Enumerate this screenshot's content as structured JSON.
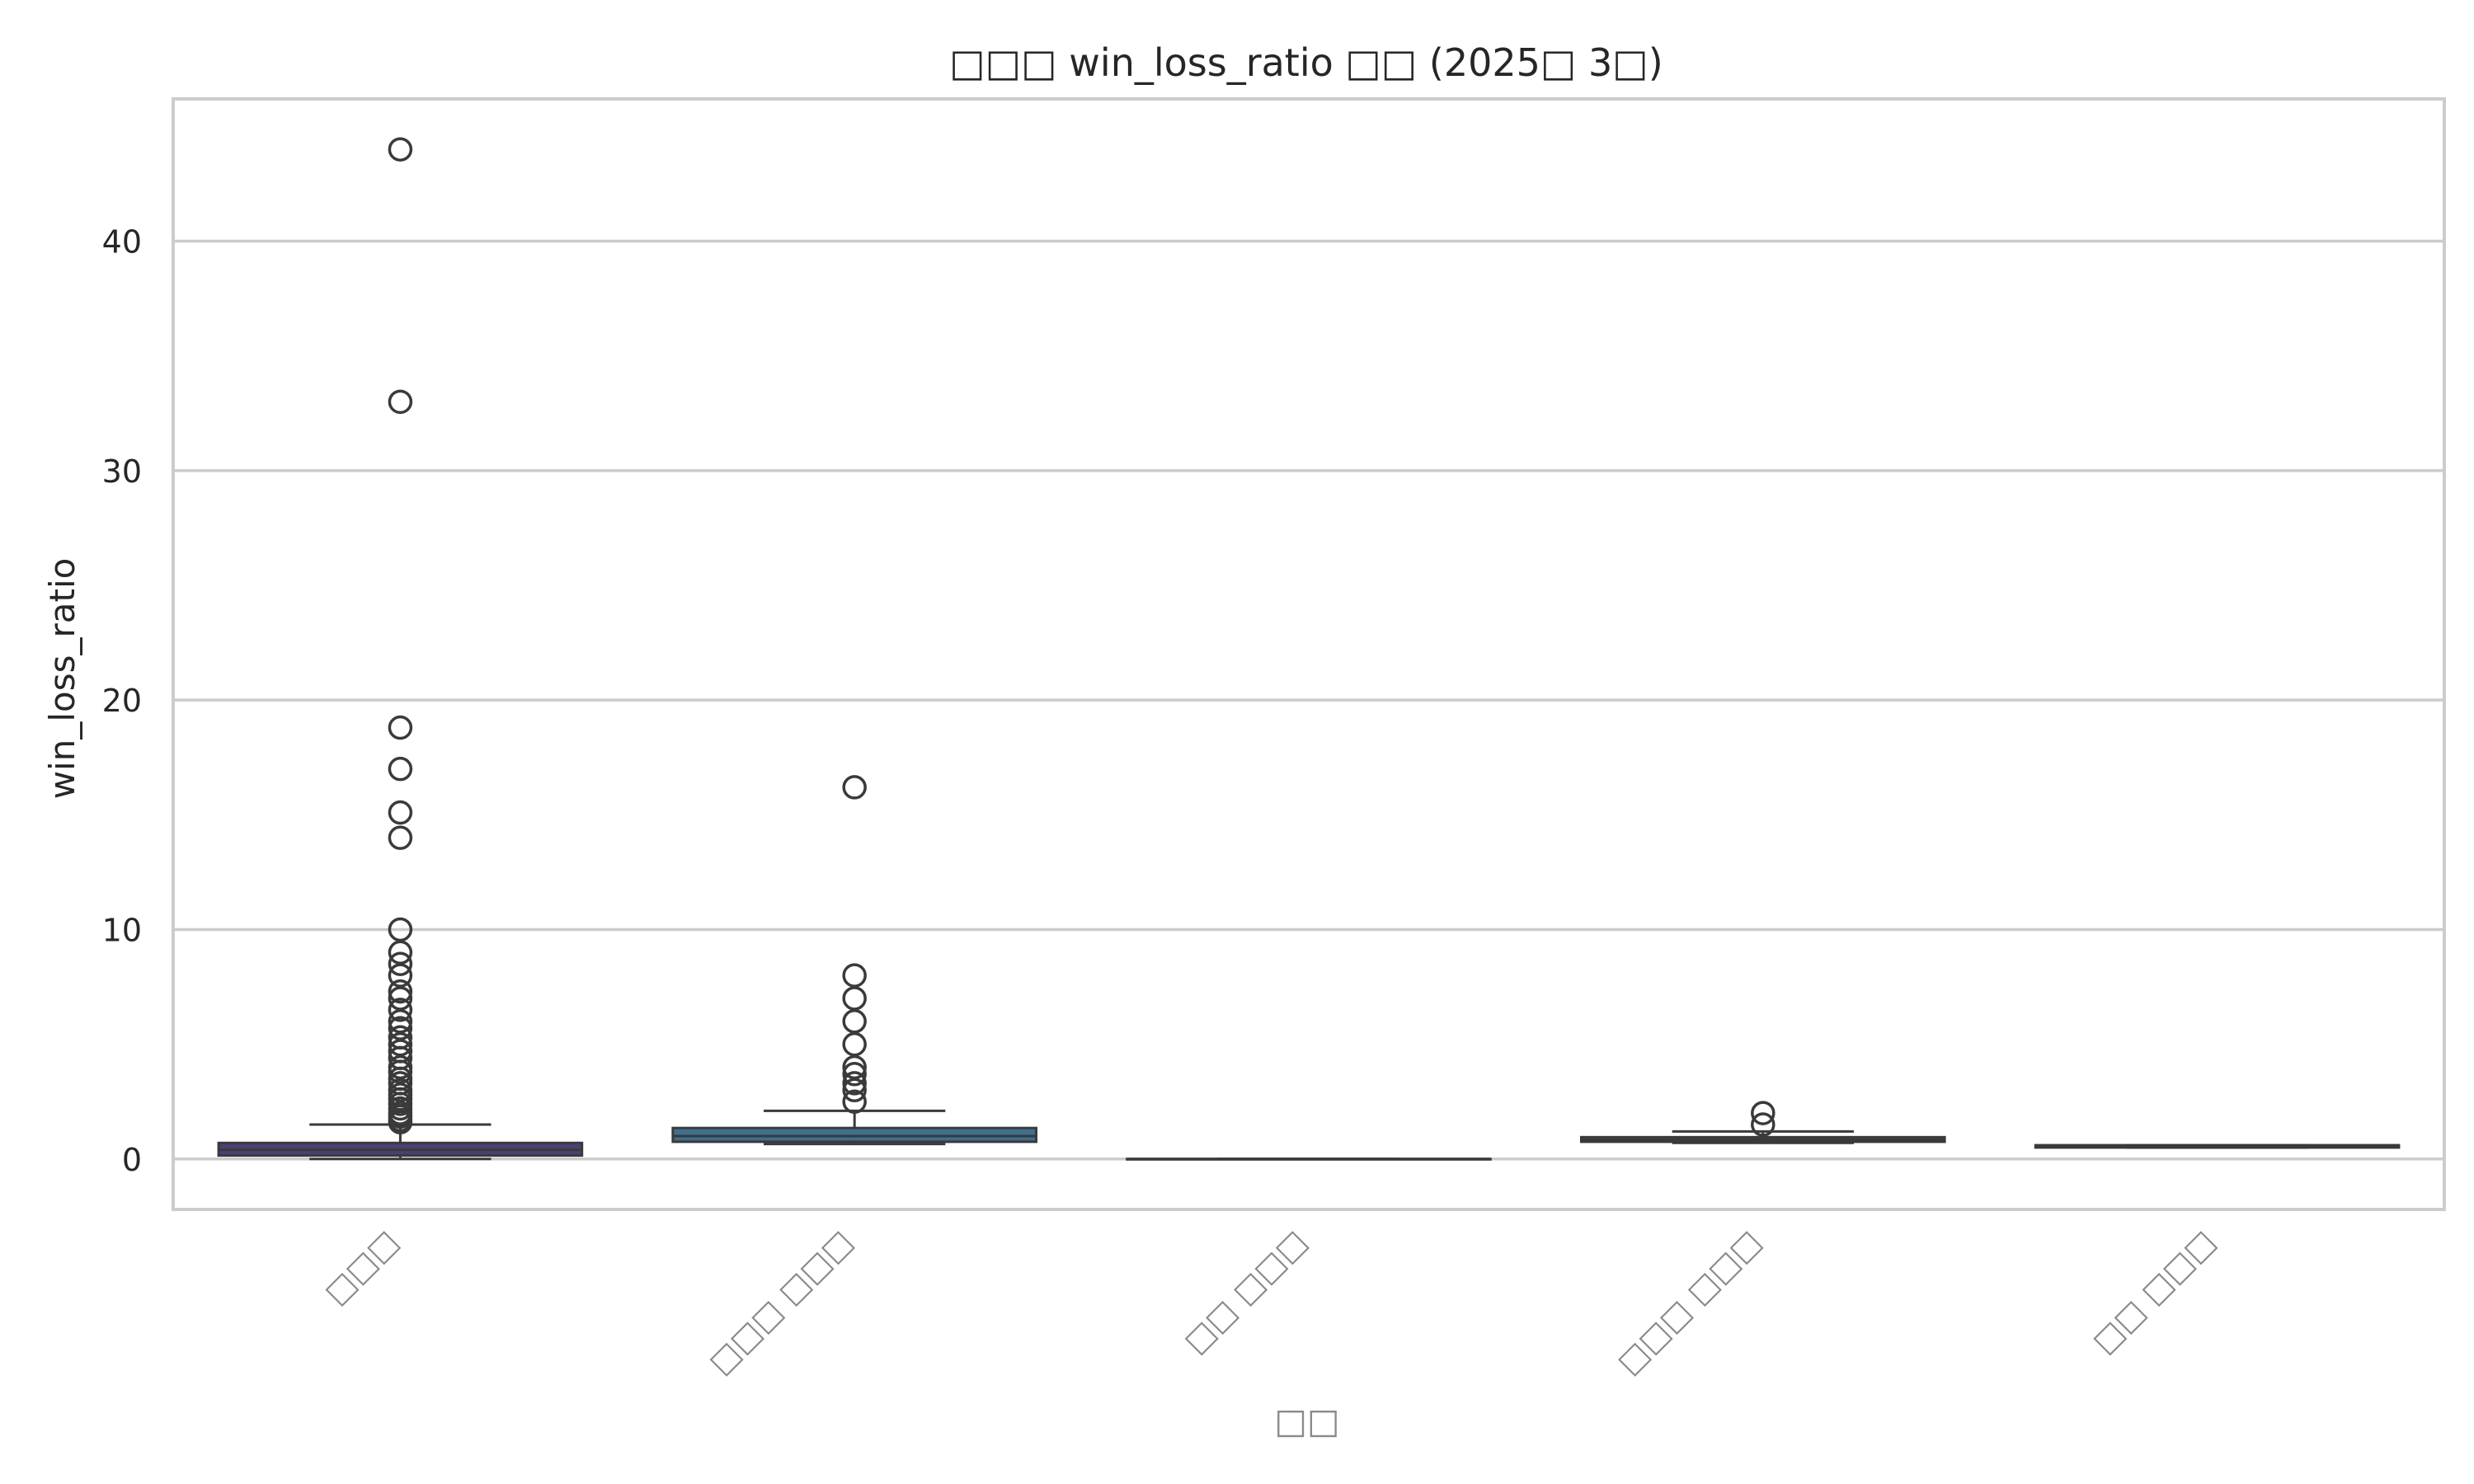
{
  "chart_data": {
    "type": "box",
    "title": "□□□ win_loss_ratio □□ (2025□ 3□)",
    "xlabel": "□□",
    "ylabel": "win_loss_ratio",
    "ylim": [
      -2.2,
      46.2
    ],
    "yticks": [
      0,
      10,
      20,
      30,
      40
    ],
    "grid": true,
    "categories": [
      "□□□",
      "□□□ □□□",
      "□□ □□□",
      "□□□ □□□",
      "□□ □□□"
    ],
    "series": [
      {
        "category": "□□□",
        "color": "#4c3f76",
        "min": 0.0,
        "q1": 0.15,
        "median": 0.4,
        "q3": 0.7,
        "max": 1.5,
        "outliers": [
          44.0,
          33.0,
          18.8,
          17.0,
          15.1,
          14.0,
          10.0,
          9.0,
          8.5,
          8.0,
          7.3,
          7.0,
          6.5,
          6.0,
          5.7,
          5.3,
          5.0,
          4.7,
          4.4,
          4.0,
          3.8,
          3.5,
          3.3,
          3.0,
          2.8,
          2.6,
          2.4,
          2.2,
          2.0,
          1.85,
          1.7,
          1.6
        ]
      },
      {
        "category": "□□□ □□□",
        "color": "#3e6f8f",
        "min": 0.65,
        "q1": 0.75,
        "median": 1.0,
        "q3": 1.35,
        "max": 2.1,
        "outliers": [
          16.2,
          8.0,
          7.0,
          6.0,
          5.0,
          4.0,
          3.7,
          3.3,
          3.0,
          2.5
        ]
      },
      {
        "category": "□□ □□□",
        "color": "#2f8b8a",
        "min": 0.0,
        "q1": 0.0,
        "median": 0.0,
        "q3": 0.0,
        "max": 0.0,
        "outliers": []
      },
      {
        "category": "□□□ □□□",
        "color": "#34a37c",
        "min": 0.7,
        "q1": 0.75,
        "median": 0.85,
        "q3": 0.95,
        "max": 1.2,
        "outliers": [
          2.0,
          1.5
        ]
      },
      {
        "category": "□□ □□□",
        "color": "#7bc65a",
        "min": 0.5,
        "q1": 0.5,
        "median": 0.55,
        "q3": 0.6,
        "max": 0.6,
        "outliers": []
      }
    ]
  }
}
